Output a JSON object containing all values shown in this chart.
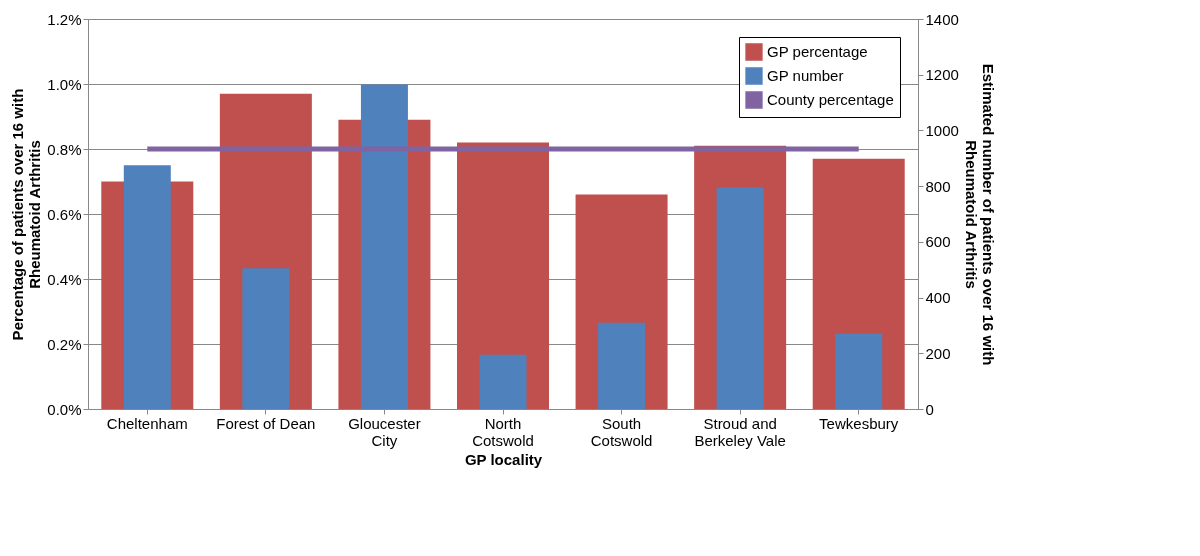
{
  "chart_data": {
    "type": "bar",
    "xlabel": "GP locality",
    "ylabel": "Percentage of patients over 16 with\nRheumatoid Arthritis",
    "y2label": "Estimated number of patients over 16 with\nRheumatoid Arthritis",
    "categories": [
      "Cheltenham",
      "Forest of Dean",
      "Gloucester\nCity",
      "North\nCotswold",
      "South\nCotswold",
      "Stroud and\nBerkeley Vale",
      "Tewkesbury"
    ],
    "series": [
      {
        "name": "GP percentage",
        "color": "#c0504d",
        "values": [
          0.7,
          0.97,
          0.89,
          0.82,
          0.66,
          0.81,
          0.77
        ]
      },
      {
        "name": "GP number",
        "axis": "y2",
        "color": "#4f81bd",
        "values": [
          875,
          505,
          1165,
          195,
          310,
          795,
          270
        ]
      },
      {
        "name": "County percentage",
        "type": "line",
        "color": "#8064a2",
        "values": [
          0.8,
          0.8,
          0.8,
          0.8,
          0.8,
          0.8,
          0.8
        ]
      }
    ],
    "ylim": [
      0,
      1.2
    ],
    "yticks": [
      {
        "value": 0,
        "label": "0.0%"
      },
      {
        "value": 0.2,
        "label": "0.2%"
      },
      {
        "value": 0.4,
        "label": "0.4%"
      },
      {
        "value": 0.6,
        "label": "0.6%"
      },
      {
        "value": 0.8,
        "label": "0.8%"
      },
      {
        "value": 1.0,
        "label": "1.0%"
      },
      {
        "value": 1.2,
        "label": "1.2%"
      }
    ],
    "y2lim": [
      0,
      1400
    ],
    "y2ticks": [
      0,
      200,
      400,
      600,
      800,
      1000,
      1200,
      1400
    ],
    "grid": "y",
    "legend": "top right",
    "marker": "none",
    "line_style": "solid"
  }
}
